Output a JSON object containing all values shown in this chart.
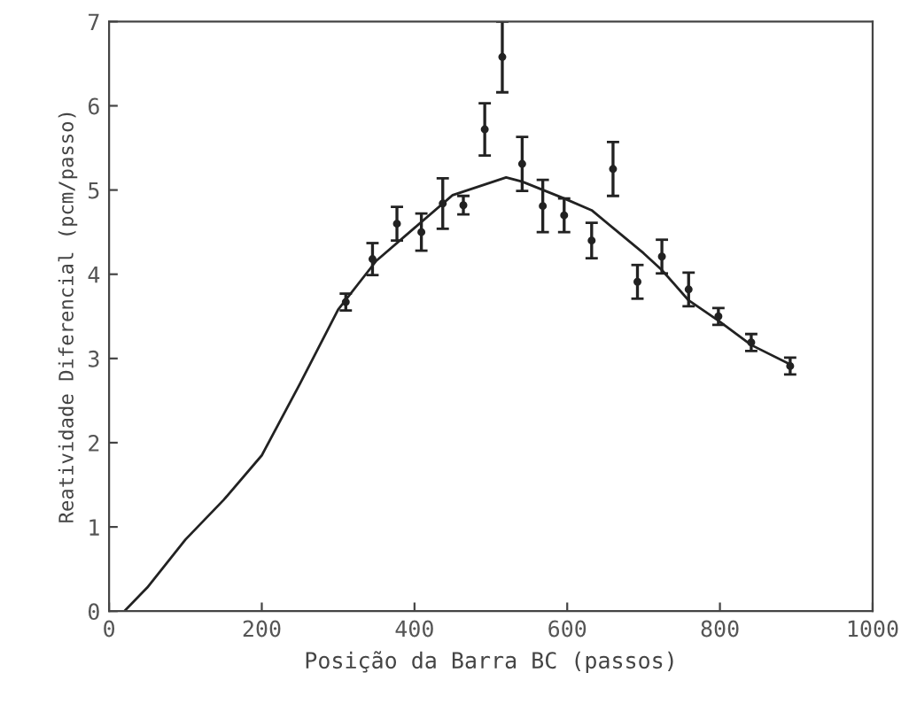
{
  "chart_data": {
    "type": "scatter",
    "xlabel": "Posição da Barra BC (passos)",
    "ylabel": "Reatividade Diferencial (pcm/passo)",
    "xlim": [
      0,
      1000
    ],
    "ylim": [
      0,
      7
    ],
    "xticks": [
      0,
      200,
      400,
      600,
      800,
      1000
    ],
    "yticks": [
      0,
      1,
      2,
      3,
      4,
      5,
      6,
      7
    ],
    "grid": false,
    "series": [
      {
        "color": "#222222",
        "marker": "circle",
        "x": [
          310,
          345,
          377,
          409,
          437,
          464,
          492,
          515,
          541,
          568,
          596,
          632,
          660,
          692,
          724,
          759,
          798,
          841,
          892
        ],
        "values": [
          3.67,
          4.18,
          4.6,
          4.5,
          4.84,
          4.82,
          5.72,
          6.58,
          5.31,
          4.81,
          4.7,
          4.4,
          5.25,
          3.91,
          4.21,
          3.82,
          3.5,
          3.19,
          2.91
        ],
        "errors": [
          0.1,
          0.19,
          0.2,
          0.22,
          0.3,
          0.11,
          0.31,
          0.42,
          0.32,
          0.31,
          0.2,
          0.21,
          0.32,
          0.2,
          0.2,
          0.2,
          0.1,
          0.1,
          0.1
        ]
      },
      {
        "type": "line",
        "color": "#222222",
        "marker": "none",
        "line_style": "solid",
        "x": [
          20,
          50,
          100,
          150,
          200,
          250,
          300,
          350,
          400,
          450,
          520,
          541,
          596,
          632,
          660,
          700,
          724,
          759,
          798,
          841,
          892
        ],
        "values": [
          0,
          0.28,
          0.85,
          1.32,
          1.85,
          2.7,
          3.58,
          4.16,
          4.55,
          4.94,
          5.15,
          5.1,
          4.9,
          4.76,
          4.55,
          4.25,
          4.05,
          3.69,
          3.45,
          3.16,
          2.93
        ]
      }
    ]
  }
}
